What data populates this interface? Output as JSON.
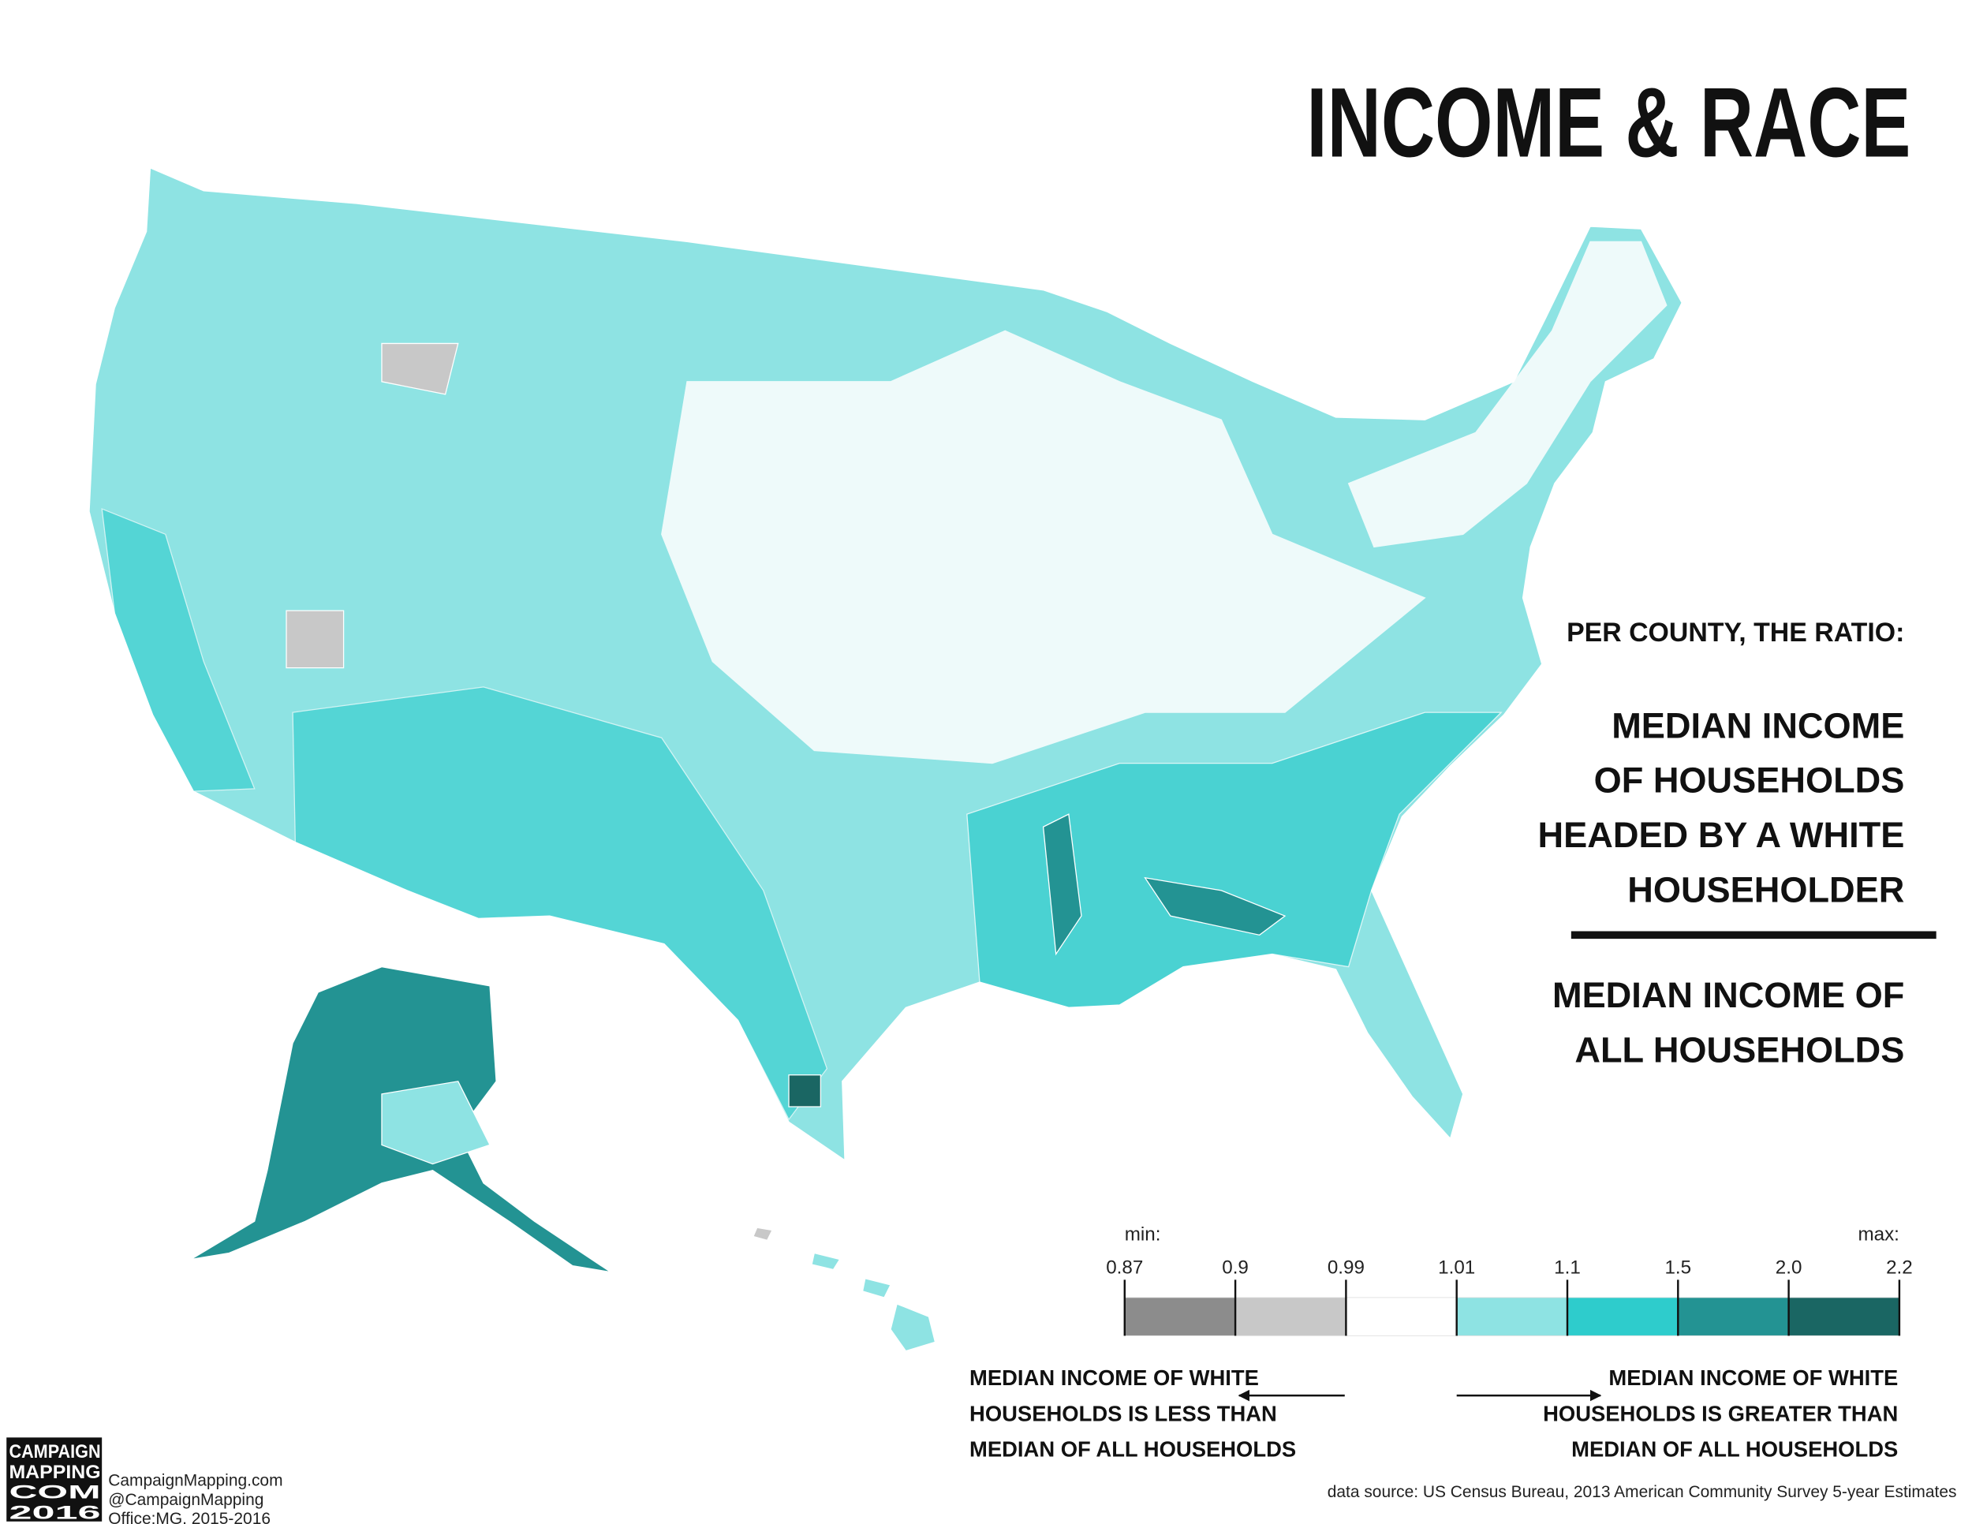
{
  "header": {
    "title": "INCOME & RACE"
  },
  "explanation": {
    "intro": "PER COUNTY, THE RATIO:",
    "numerator": [
      "MEDIAN INCOME",
      "OF HOUSEHOLDS",
      "HEADED BY A WHITE",
      "HOUSEHOLDER"
    ],
    "denominator": [
      "MEDIAN INCOME OF",
      "ALL HOUSEHOLDS"
    ]
  },
  "legend": {
    "min_label": "min:",
    "max_label": "max:",
    "breaks": [
      0.87,
      0.9,
      0.99,
      1.01,
      1.1,
      1.5,
      {
        "value": 2,
        "label": "2.0"
      },
      2.2
    ],
    "colors": [
      "#8c8c8c",
      "#c8c8c8",
      "#ffffff",
      "#8ee3e3",
      "#2ecccc",
      "#239393",
      "#1a6663"
    ]
  },
  "notes": {
    "less": [
      "MEDIAN INCOME OF WHITE",
      "HOUSEHOLDS IS LESS THAN",
      "MEDIAN OF ALL HOUSEHOLDS"
    ],
    "greater": [
      "MEDIAN INCOME OF WHITE",
      "HOUSEHOLDS IS GREATER THAN",
      "MEDIAN OF ALL HOUSEHOLDS"
    ]
  },
  "footer": {
    "logo": [
      "CAMPAIGN",
      "MAPPING",
      "COM",
      "2016"
    ],
    "credits": [
      "CampaignMapping.com",
      "@CampaignMapping",
      "Office:MG, 2015-2016"
    ],
    "source": "data source: US Census Bureau, 2013 American Community Survey 5-year Estimates"
  }
}
